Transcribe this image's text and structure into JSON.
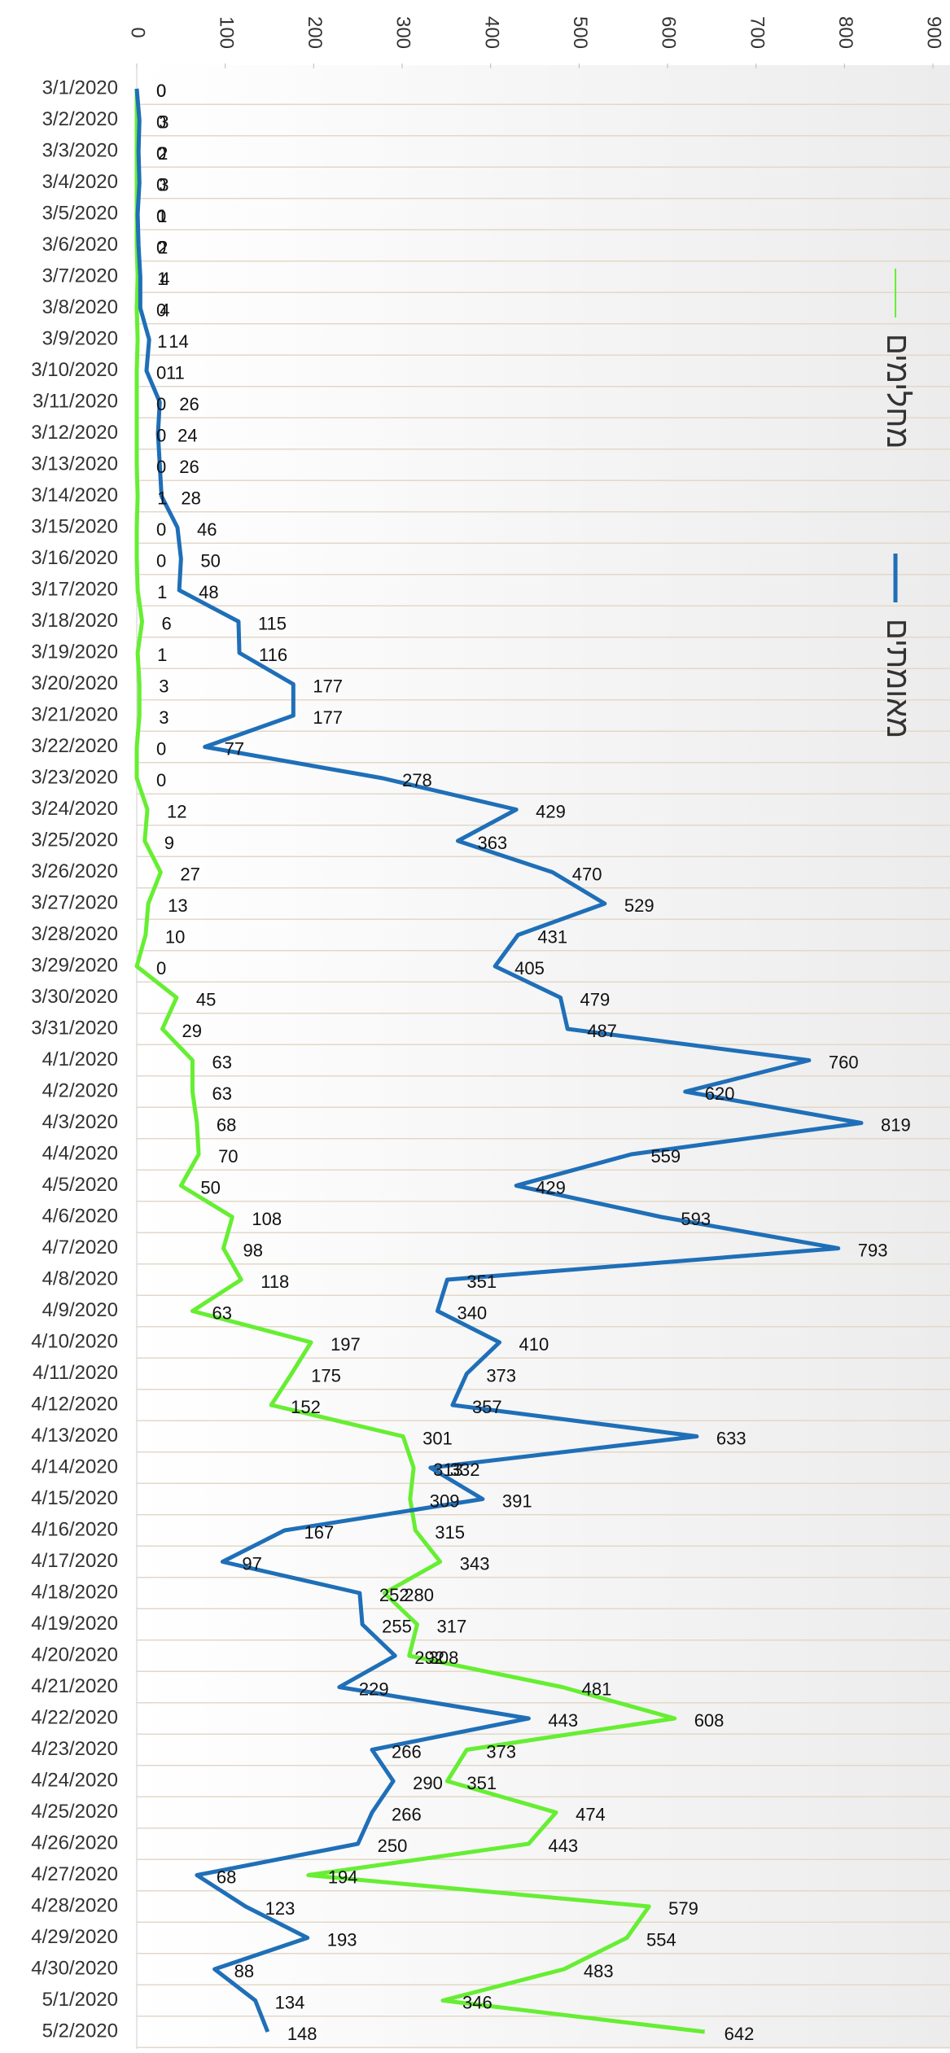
{
  "chart_data": {
    "type": "line",
    "orientation": "horizontal",
    "legend": "right",
    "grid": true,
    "categories": [
      "3/1/2020",
      "3/2/2020",
      "3/3/2020",
      "3/4/2020",
      "3/5/2020",
      "3/6/2020",
      "3/7/2020",
      "3/8/2020",
      "3/9/2020",
      "3/10/2020",
      "3/11/2020",
      "3/12/2020",
      "3/13/2020",
      "3/14/2020",
      "3/15/2020",
      "3/16/2020",
      "3/17/2020",
      "3/18/2020",
      "3/19/2020",
      "3/20/2020",
      "3/21/2020",
      "3/22/2020",
      "3/23/2020",
      "3/24/2020",
      "3/25/2020",
      "3/26/2020",
      "3/27/2020",
      "3/28/2020",
      "3/29/2020",
      "3/30/2020",
      "3/31/2020",
      "4/1/2020",
      "4/2/2020",
      "4/3/2020",
      "4/4/2020",
      "4/5/2020",
      "4/6/2020",
      "4/7/2020",
      "4/8/2020",
      "4/9/2020",
      "4/10/2020",
      "4/11/2020",
      "4/12/2020",
      "4/13/2020",
      "4/14/2020",
      "4/15/2020",
      "4/16/2020",
      "4/17/2020",
      "4/18/2020",
      "4/19/2020",
      "4/20/2020",
      "4/21/2020",
      "4/22/2020",
      "4/23/2020",
      "4/24/2020",
      "4/25/2020",
      "4/26/2020",
      "4/27/2020",
      "4/28/2020",
      "4/29/2020",
      "4/30/2020",
      "5/1/2020",
      "5/2/2020"
    ],
    "series": [
      {
        "name": "מחלימים",
        "color": "#66ee33",
        "values": [
          0,
          0,
          0,
          0,
          0,
          0,
          1,
          0,
          1,
          0,
          0,
          0,
          0,
          1,
          0,
          0,
          1,
          6,
          1,
          3,
          3,
          0,
          0,
          12,
          9,
          27,
          13,
          10,
          0,
          45,
          29,
          63,
          63,
          68,
          70,
          50,
          108,
          98,
          118,
          63,
          197,
          175,
          152,
          301,
          313,
          309,
          315,
          343,
          280,
          317,
          308,
          481,
          608,
          373,
          351,
          474,
          443,
          194,
          579,
          554,
          483,
          346,
          642
        ]
      },
      {
        "name": "מאומתים",
        "color": "#1f6fb8",
        "values": [
          0,
          3,
          2,
          3,
          1,
          2,
          4,
          4,
          14,
          11,
          26,
          24,
          26,
          28,
          46,
          50,
          48,
          115,
          116,
          177,
          177,
          77,
          278,
          429,
          363,
          470,
          529,
          431,
          405,
          479,
          487,
          760,
          620,
          819,
          559,
          429,
          593,
          793,
          351,
          340,
          410,
          373,
          357,
          633,
          332,
          391,
          167,
          97,
          252,
          255,
          292,
          229,
          443,
          266,
          290,
          266,
          250,
          68,
          123,
          193,
          88,
          134,
          148
        ]
      }
    ],
    "ylim": [
      0,
      900
    ],
    "yticks": [
      0,
      100,
      200,
      300,
      400,
      500,
      600,
      700,
      800,
      900
    ]
  }
}
